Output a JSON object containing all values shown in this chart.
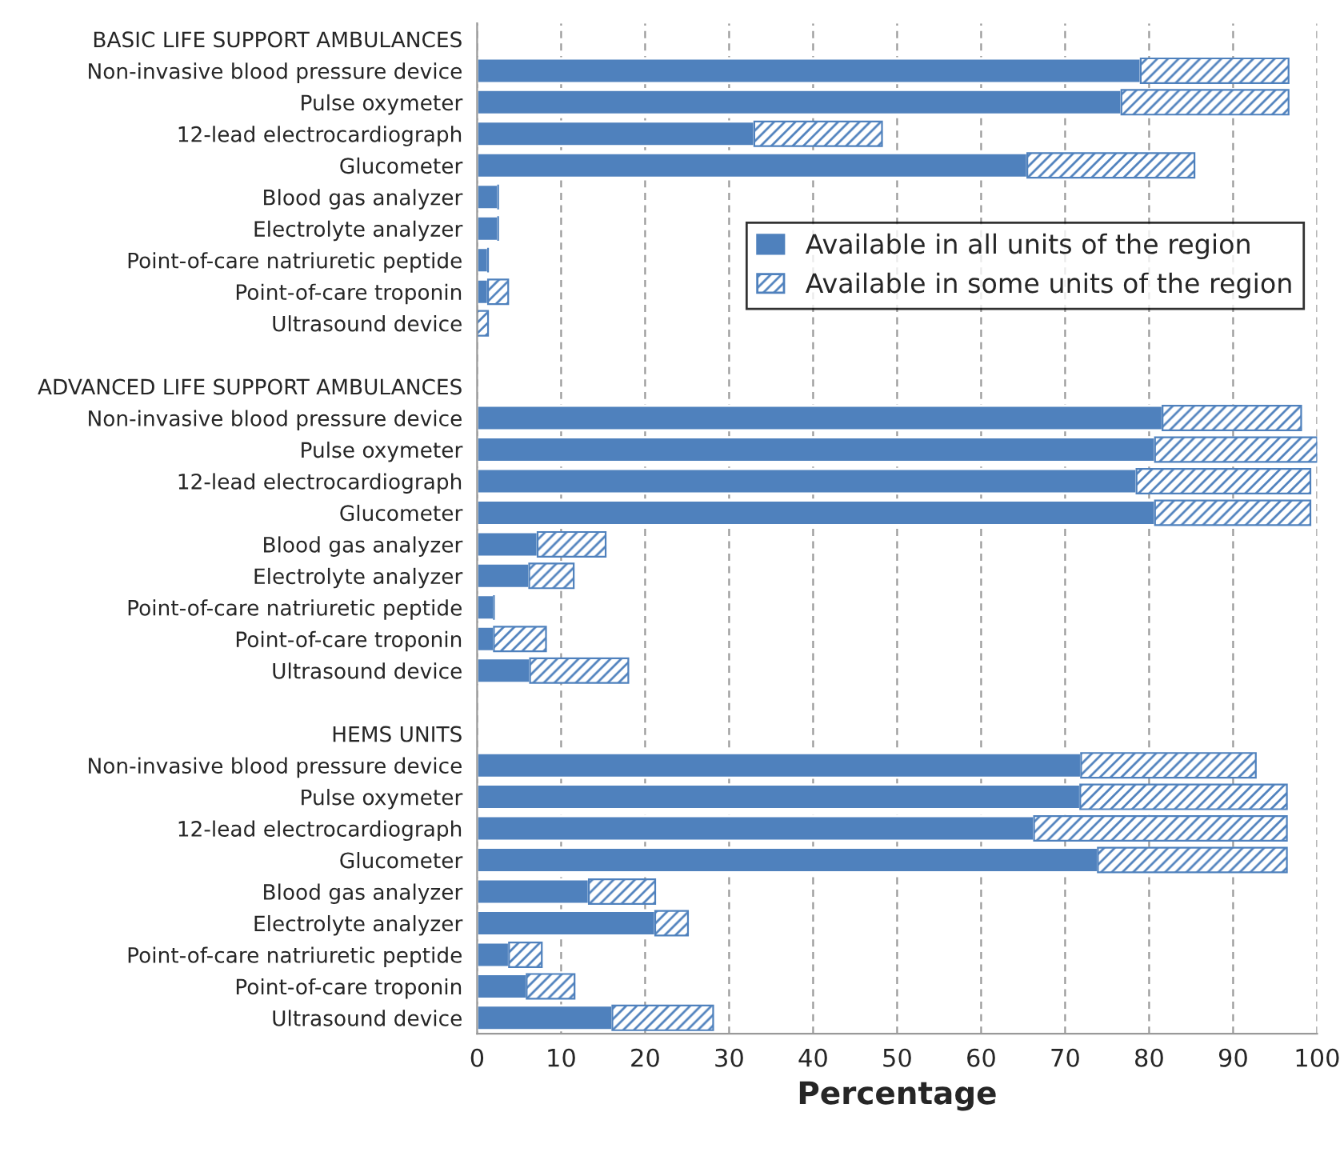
{
  "chart_data": {
    "type": "bar",
    "orientation": "horizontal",
    "stacked": true,
    "categories": [
      "BASIC LIFE SUPPORT AMBULANCES",
      "Non-invasive blood pressure device",
      "Pulse oxymeter",
      "12-lead electrocardiograph",
      "Glucometer",
      "Blood gas analyzer",
      "Electrolyte analyzer",
      "Point-of-care natriuretic peptide",
      "Point-of-care troponin",
      "Ultrasound device",
      null,
      "ADVANCED LIFE SUPPORT AMBULANCES",
      "Non-invasive blood pressure device",
      "Pulse oxymeter",
      "12-lead electrocardiograph",
      "Glucometer",
      "Blood gas analyzer",
      "Electrolyte analyzer",
      "Point-of-care natriuretic peptide",
      "Point-of-care troponin",
      "Ultrasound device",
      null,
      "HEMS UNITS",
      "Non-invasive blood pressure device",
      "Pulse oxymeter",
      "12-lead electrocardiograph",
      "Glucometer",
      "Blood gas analyzer",
      "Electrolyte analyzer",
      "Point-of-care natriuretic peptide",
      "Point-of-care troponin",
      "Ultrasound device"
    ],
    "series": [
      {
        "name": "Available in all units of the region",
        "color": "#4f81bd",
        "values": [
          null,
          79.0,
          76.7,
          33.0,
          65.5,
          2.5,
          2.5,
          1.3,
          1.3,
          0,
          null,
          null,
          81.6,
          80.7,
          78.5,
          80.7,
          7.2,
          6.2,
          2.0,
          2.0,
          6.3,
          null,
          null,
          71.9,
          71.8,
          66.3,
          73.9,
          13.3,
          21.2,
          3.8,
          5.9,
          16.1
        ]
      },
      {
        "name": "Available in some units of the region",
        "color": "#4f81bd",
        "values": [
          null,
          17.6,
          19.9,
          15.2,
          19.9,
          0,
          0,
          0,
          2.4,
          1.3,
          null,
          null,
          16.5,
          19.3,
          20.7,
          18.5,
          8.1,
          5.3,
          0,
          6.2,
          11.7,
          null,
          null,
          20.8,
          24.6,
          30.1,
          22.5,
          7.9,
          3.9,
          3.9,
          5.7,
          12.0
        ]
      }
    ],
    "xlim": [
      0,
      100
    ],
    "xticks": [
      0,
      10,
      20,
      30,
      40,
      50,
      60,
      70,
      80,
      90,
      100
    ],
    "xlabel": "Percentage",
    "grid": "x",
    "legend": "right"
  }
}
